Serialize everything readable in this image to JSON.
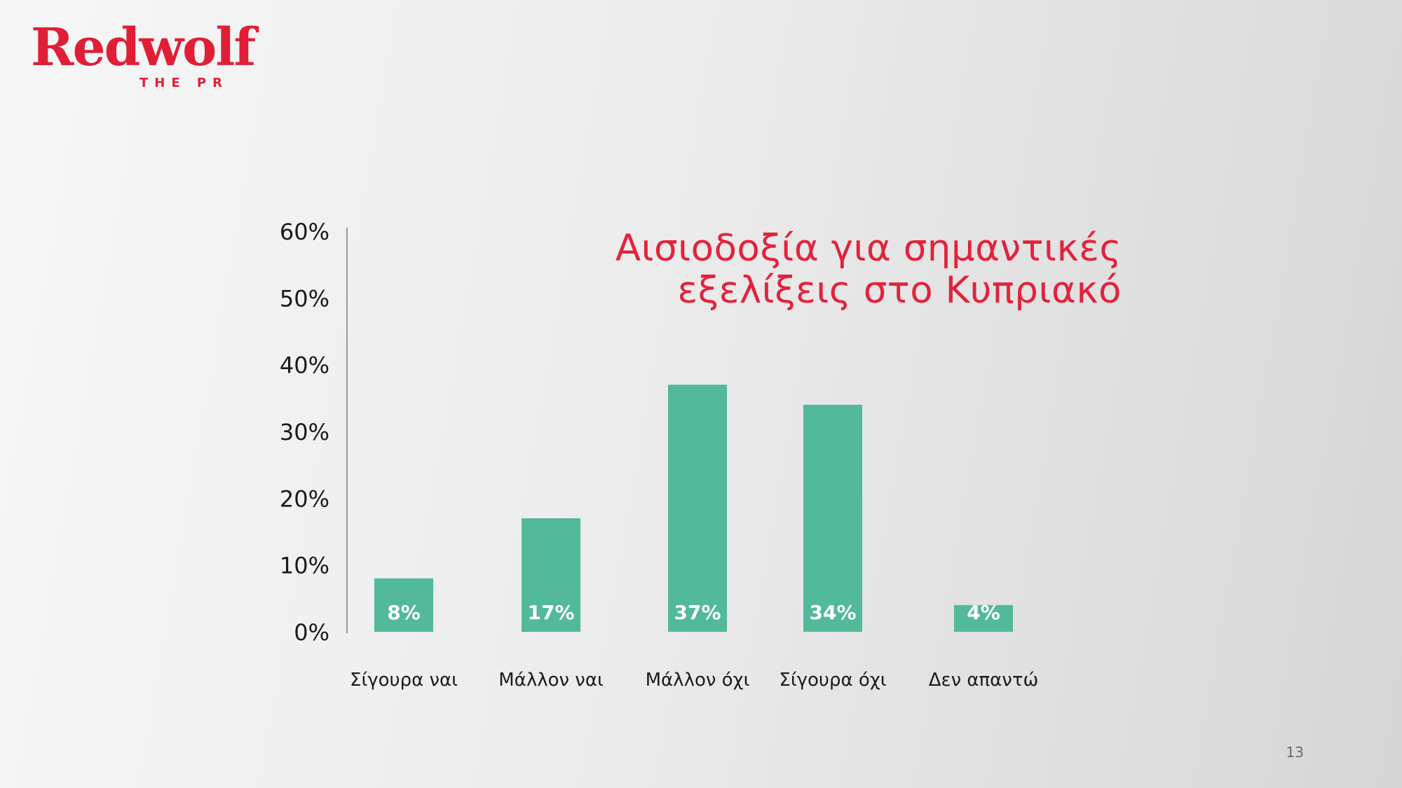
{
  "logo": {
    "name": "Redwolf",
    "tagline": "THE PR"
  },
  "page_number": "13",
  "colors": {
    "bar": "#52b99b",
    "title": "#e3223c",
    "logo": "#e01f37",
    "axis_text": "#1a1a1a",
    "bar_label": "#ffffff"
  },
  "chart_data": {
    "type": "bar",
    "title_lines": [
      "Αισιοδοξία για σημαντικές",
      "εξελίξεις στο Κυπριακό"
    ],
    "categories": [
      "Σίγουρα ναι",
      "Μάλλον ναι",
      "Μάλλον όχι",
      "Σίγουρα όχι",
      "Δεν απαντώ"
    ],
    "values": [
      8,
      17,
      37,
      34,
      4
    ],
    "data_labels": [
      "8%",
      "17%",
      "37%",
      "34%",
      "4%"
    ],
    "ylim": [
      0,
      60
    ],
    "yticks": [
      0,
      10,
      20,
      30,
      40,
      50,
      60
    ],
    "ytick_labels": [
      "0%",
      "10%",
      "20%",
      "30%",
      "40%",
      "50%",
      "60%"
    ],
    "xlabel": "",
    "ylabel": "",
    "grid": false,
    "legend": "none"
  }
}
